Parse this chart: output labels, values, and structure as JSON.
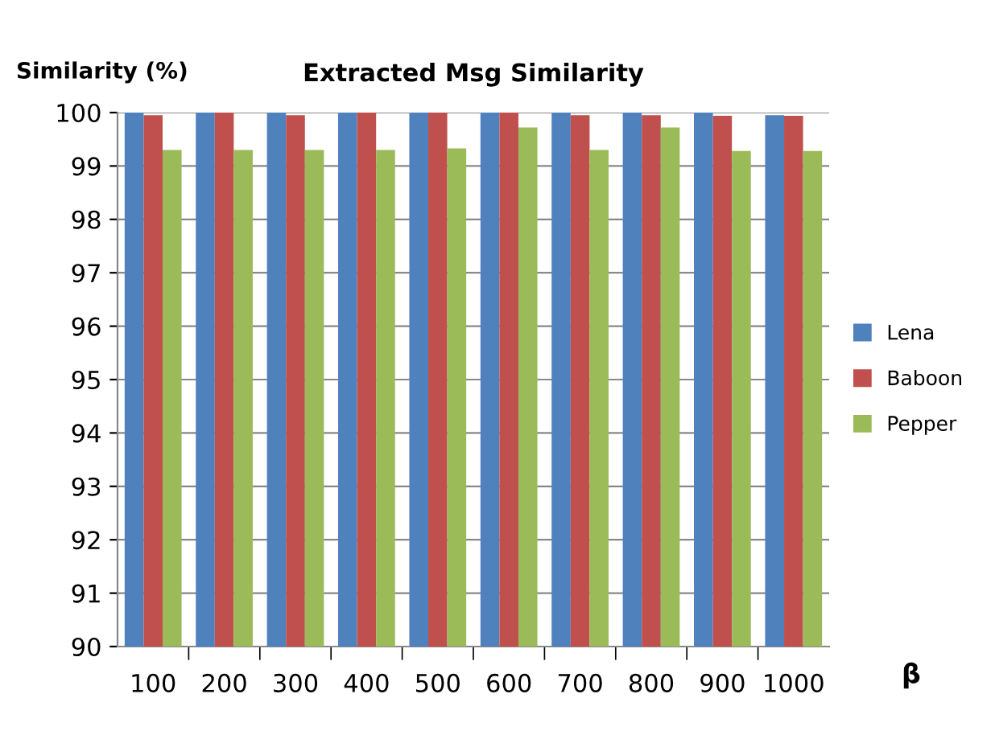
{
  "chart_data": {
    "type": "bar",
    "title": "Extracted Msg Similarity",
    "ylabel": "Similarity (%)",
    "xlabel": "β",
    "categories": [
      "100",
      "200",
      "300",
      "400",
      "500",
      "600",
      "700",
      "800",
      "900",
      "1000"
    ],
    "series": [
      {
        "name": "Lena",
        "color": "#4f81bd",
        "values": [
          100,
          100,
          100,
          100,
          100,
          100,
          100,
          100,
          100,
          99.95
        ]
      },
      {
        "name": "Baboon",
        "color": "#c0504d",
        "values": [
          99.95,
          100,
          99.95,
          100,
          100,
          100,
          99.95,
          99.95,
          99.94,
          99.94
        ]
      },
      {
        "name": "Pepper",
        "color": "#9bbb59",
        "values": [
          99.3,
          99.3,
          99.3,
          99.3,
          99.33,
          99.72,
          99.3,
          99.72,
          99.28,
          99.28
        ]
      }
    ],
    "ylim": [
      90,
      100
    ],
    "yticks": [
      90,
      91,
      92,
      93,
      94,
      95,
      96,
      97,
      98,
      99,
      100
    ],
    "grid": "y",
    "legend": "right"
  }
}
